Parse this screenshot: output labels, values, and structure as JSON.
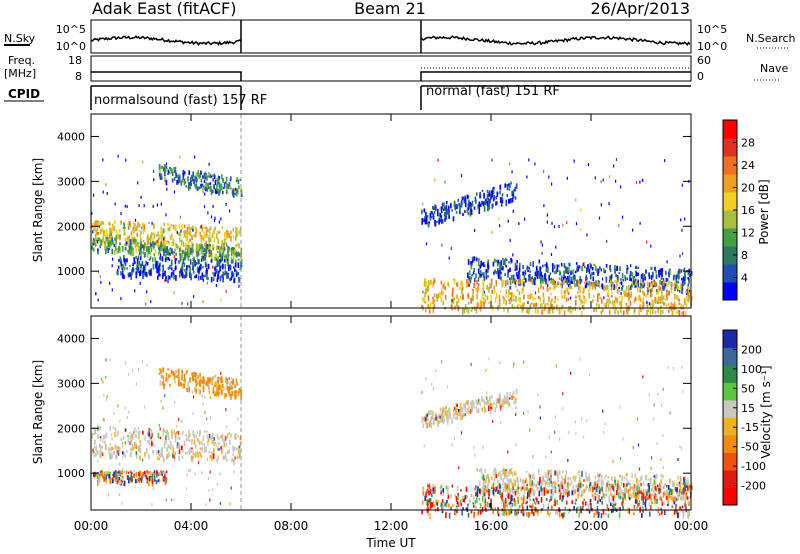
{
  "header": {
    "title": "Adak East (fitACF)",
    "beam": "Beam 21",
    "date": "26/Apr/2013"
  },
  "sky_panel": {
    "left_label": "N.Sky",
    "right_label": "N.Search",
    "left_ticks": [
      "10^5",
      "10^0"
    ],
    "right_ticks": [
      "10^5",
      "10^0"
    ]
  },
  "freq_panel": {
    "left_label_line1": "Freq.",
    "left_label_line2": "[MHz]",
    "right_label": "Nave",
    "left_ticks": [
      "18",
      "8"
    ],
    "right_ticks": [
      "60",
      "0"
    ]
  },
  "cpid": {
    "label": "CPID",
    "segments": [
      "normalsound (fast) 157 RF",
      "normal (fast) 151 RF"
    ]
  },
  "power_panel": {
    "ylabel": "Slant Range [km]",
    "yticks": [
      "4000",
      "3000",
      "2000",
      "1000"
    ],
    "colorbar_label": "Power [dB]",
    "colorbar_ticks": [
      "28",
      "24",
      "20",
      "16",
      "12",
      "8",
      "4"
    ],
    "colors": [
      "#0000ff",
      "#1f4fb4",
      "#2e7a5c",
      "#44a044",
      "#a8c040",
      "#f0d020",
      "#f0a020",
      "#f07020",
      "#e03020",
      "#ff0000"
    ]
  },
  "velocity_panel": {
    "ylabel": "Slant Range [km]",
    "yticks": [
      "4000",
      "3000",
      "2000",
      "1000"
    ],
    "colorbar_label": "Velocity [m s⁻¹]",
    "colorbar_ticks": [
      "200",
      "100",
      "50",
      "15",
      "-15",
      "-50",
      "-100",
      "-200"
    ],
    "colors": [
      "#1a2aa8",
      "#3a6a9a",
      "#2e8a4a",
      "#5ac83a",
      "#c8c8c0",
      "#f0b020",
      "#f08a10",
      "#f05010",
      "#e01a10",
      "#ff0000"
    ]
  },
  "x_axis": {
    "ticks": [
      "00:00",
      "04:00",
      "08:00",
      "12:00",
      "16:00",
      "20:00",
      "00:00"
    ],
    "label": "Time UT"
  },
  "chart_data": {
    "type": "heatmap",
    "x_range_hours": [
      0,
      24
    ],
    "y_range_km": [
      180,
      4500
    ],
    "data_gap_hours": [
      6,
      13.2
    ],
    "power_features": [
      {
        "t0": 0.0,
        "t1": 6.0,
        "r_start": 1900,
        "r_end": 1750,
        "width": 260,
        "level": 0.55
      },
      {
        "t0": 0.0,
        "t1": 6.0,
        "r_start": 1650,
        "r_end": 1400,
        "width": 150,
        "level": 0.35
      },
      {
        "t0": 1.0,
        "t1": 6.0,
        "r_start": 1150,
        "r_end": 1050,
        "width": 220,
        "level": 0.15
      },
      {
        "t0": 2.7,
        "t1": 6.0,
        "r_start": 3200,
        "r_end": 2900,
        "width": 200,
        "level": 0.25
      },
      {
        "t0": 13.2,
        "t1": 17.0,
        "r_start": 2200,
        "r_end": 2850,
        "width": 200,
        "level": 0.12
      },
      {
        "t0": 15.0,
        "t1": 24.0,
        "r_start": 1100,
        "r_end": 800,
        "width": 260,
        "level": 0.15
      },
      {
        "t0": 13.2,
        "t1": 24.0,
        "r_start": 500,
        "r_end": 450,
        "width": 350,
        "level": 0.6
      }
    ],
    "velocity_features": [
      {
        "t0": 0.0,
        "t1": 6.0,
        "r_start": 1750,
        "r_end": 1600,
        "width": 320,
        "class": "near-zero"
      },
      {
        "t0": 2.7,
        "t1": 6.0,
        "r_start": 3200,
        "r_end": 2900,
        "width": 200,
        "class": "negative"
      },
      {
        "t0": 0.0,
        "t1": 3.0,
        "r_start": 950,
        "r_end": 950,
        "width": 120,
        "class": "mixed"
      },
      {
        "t0": 13.2,
        "t1": 17.0,
        "r_start": 2200,
        "r_end": 2750,
        "width": 160,
        "class": "near-zero"
      },
      {
        "t0": 15.5,
        "t1": 24.0,
        "r_start": 900,
        "r_end": 700,
        "width": 260,
        "class": "near-zero"
      },
      {
        "t0": 13.2,
        "t1": 24.0,
        "r_start": 450,
        "r_end": 450,
        "width": 350,
        "class": "mixed"
      }
    ]
  }
}
